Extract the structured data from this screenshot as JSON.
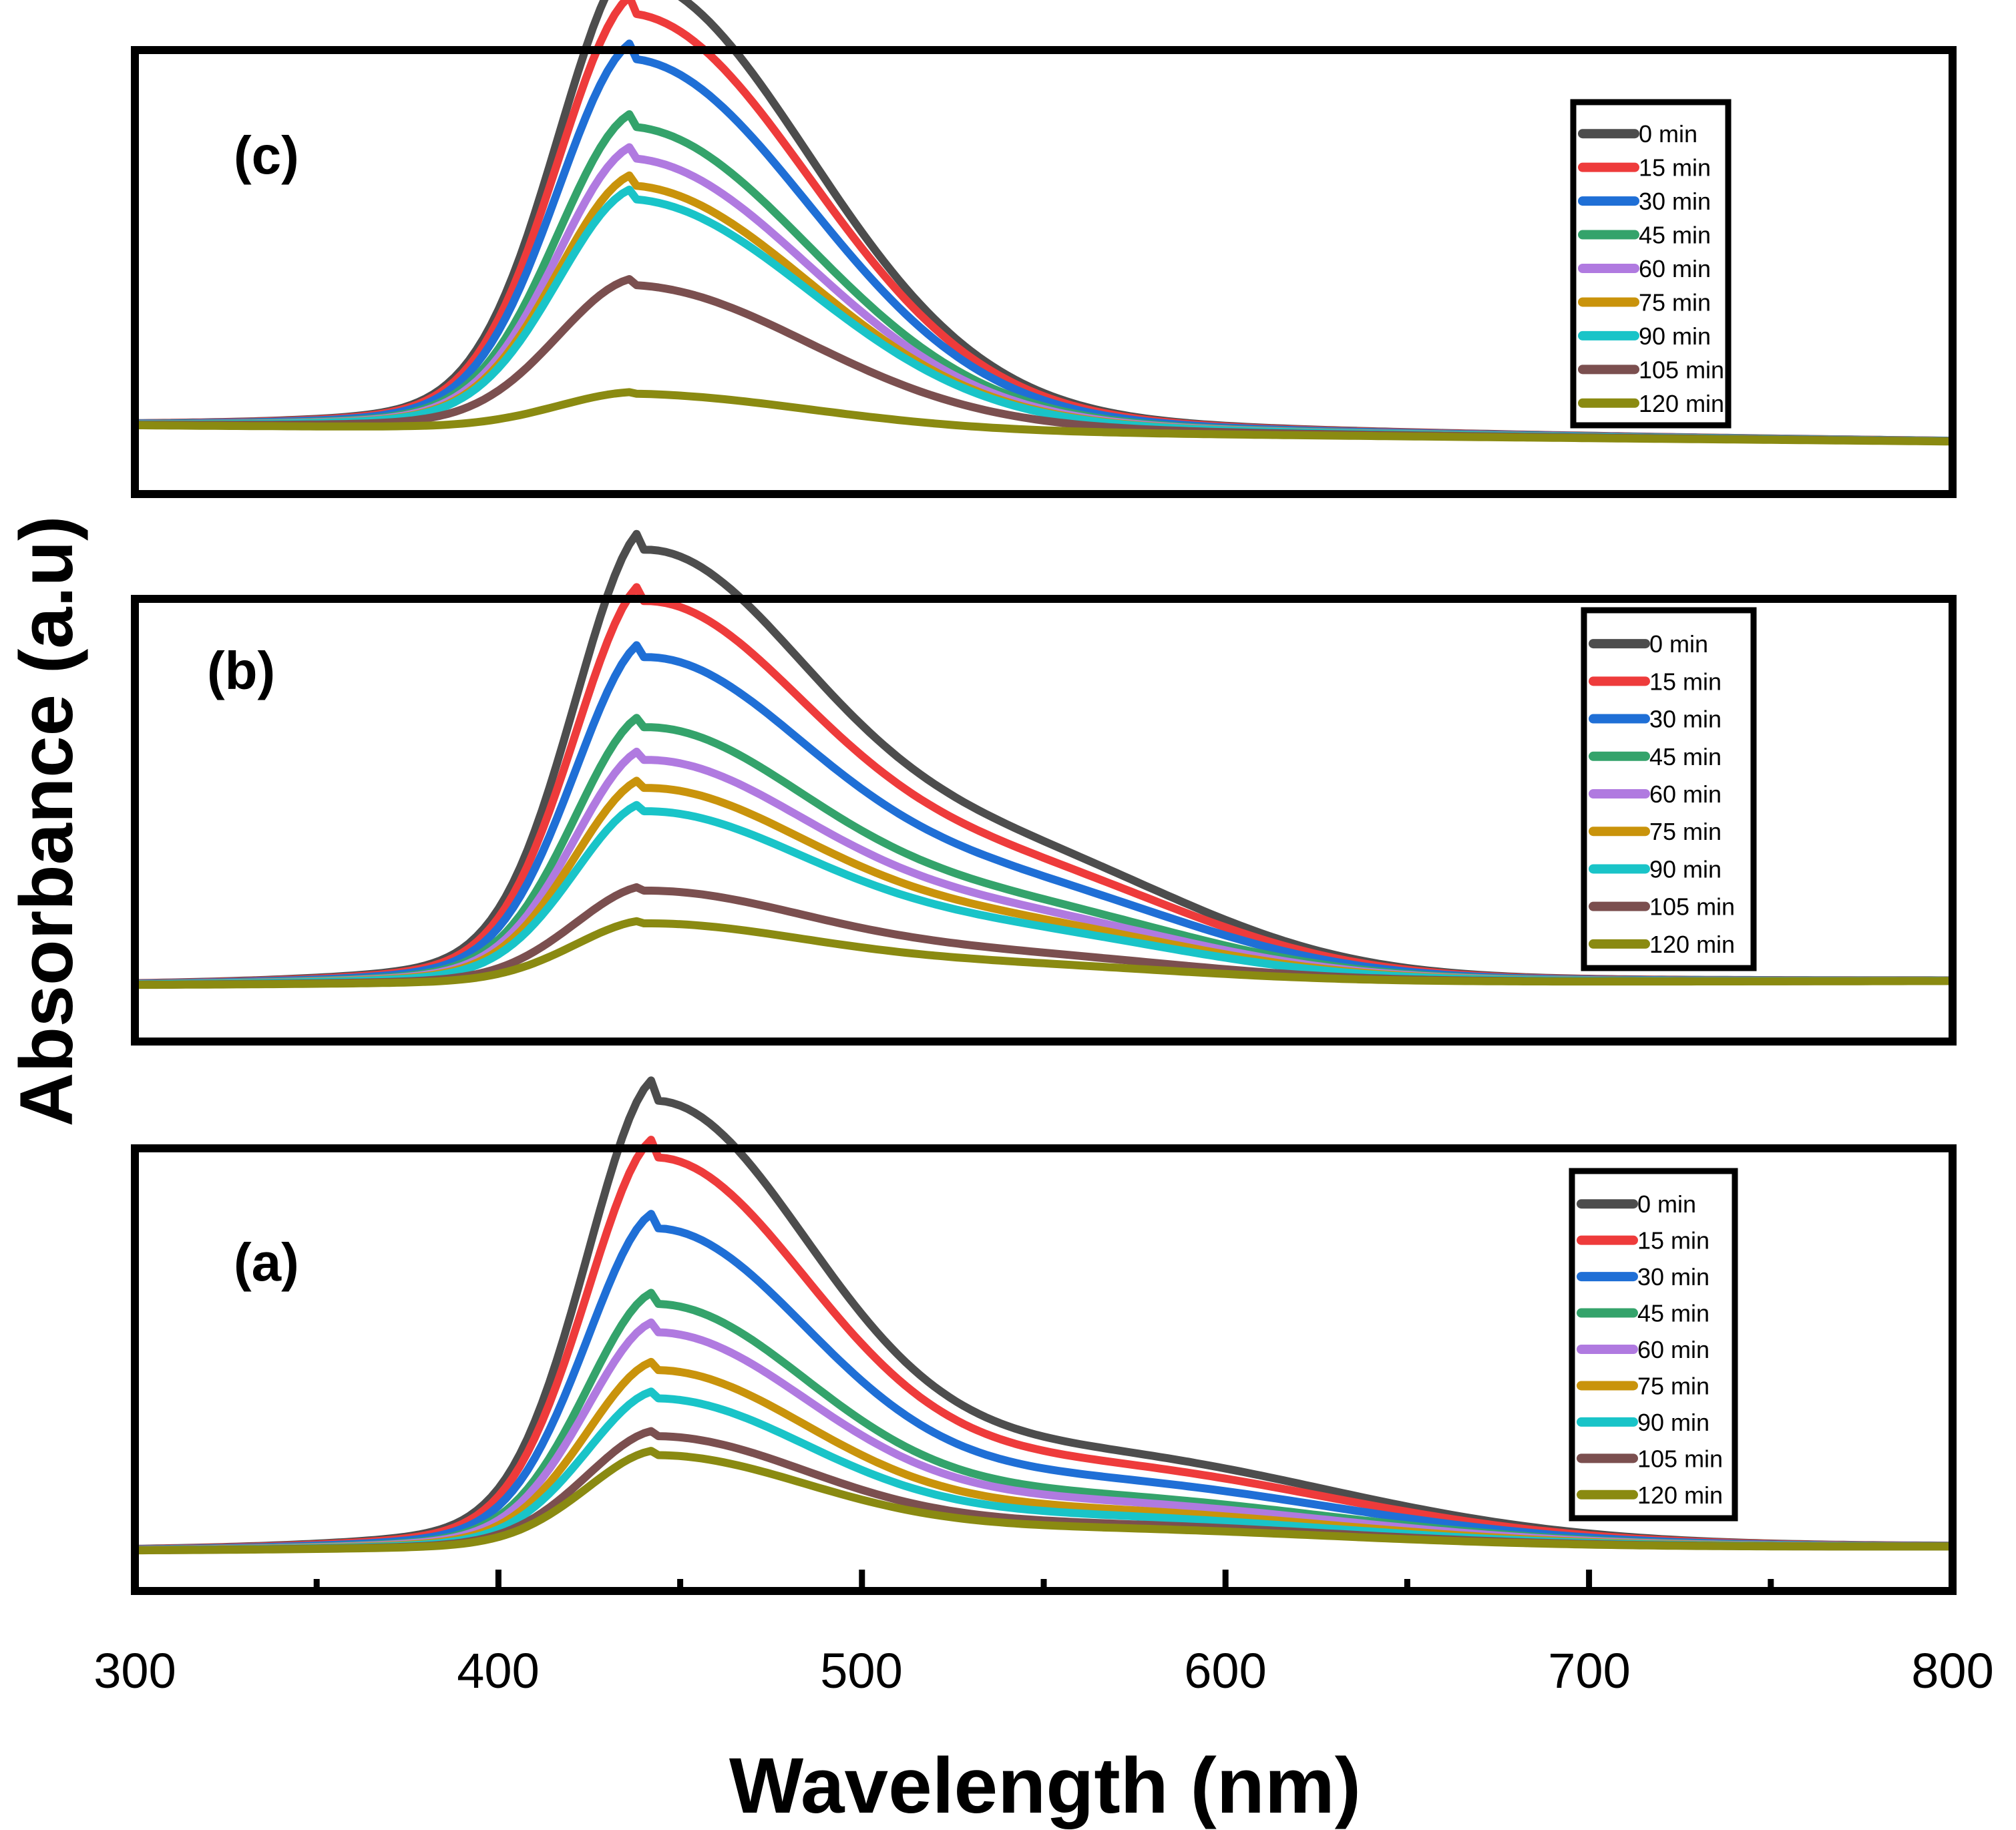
{
  "chart_data": {
    "type": "line",
    "xlabel": "Wavelength (nm)",
    "ylabel": "Absorbance (a.u)",
    "xlim": [
      300,
      800
    ],
    "x_ticks": [
      "300",
      "400",
      "500",
      "600",
      "700",
      "800"
    ],
    "y_ticks_shown": false,
    "legend_position": "top-right",
    "series_names": [
      "0 min",
      "15 min",
      "30 min",
      "45 min",
      "60 min",
      "75 min",
      "90 min",
      "105 min",
      "120 min"
    ],
    "series_colors": [
      "#4d4d4d",
      "#ee3b3b",
      "#1f6fd6",
      "#34a36b",
      "#b07ae0",
      "#c9930b",
      "#19c4c8",
      "#7b4f4f",
      "#8a8a11"
    ],
    "panels": [
      {
        "label": "(c)",
        "ylim": [
          0,
          1.1
        ],
        "baseline_at_300": 0.17,
        "baseline_at_800": 0.13,
        "peak_wavelength": 438,
        "width_left": 22,
        "width_right": 48,
        "shoulder_height_frac": 0.0,
        "shoulder_center": 540,
        "shoulder_width": 60,
        "peak_heights": [
          1.0,
          0.92,
          0.82,
          0.67,
          0.6,
          0.54,
          0.51,
          0.32,
          0.08
        ]
      },
      {
        "label": "(b)",
        "ylim": [
          0,
          1.1
        ],
        "baseline_at_300": 0.14,
        "baseline_at_800": 0.15,
        "peak_wavelength": 440,
        "width_left": 20,
        "width_right": 45,
        "shoulder_height_frac": 0.3,
        "shoulder_center": 540,
        "shoulder_width": 50,
        "peak_heights": [
          0.93,
          0.82,
          0.7,
          0.55,
          0.48,
          0.42,
          0.37,
          0.2,
          0.13
        ]
      },
      {
        "label": "(a)",
        "ylim": [
          0,
          1.1
        ],
        "baseline_at_300": 0.1,
        "baseline_at_800": 0.11,
        "peak_wavelength": 443,
        "width_left": 20,
        "width_right": 42,
        "shoulder_height_frac": 0.22,
        "shoulder_center": 560,
        "shoulder_width": 70,
        "peak_heights": [
          0.95,
          0.83,
          0.68,
          0.52,
          0.46,
          0.38,
          0.32,
          0.24,
          0.2
        ]
      }
    ]
  }
}
